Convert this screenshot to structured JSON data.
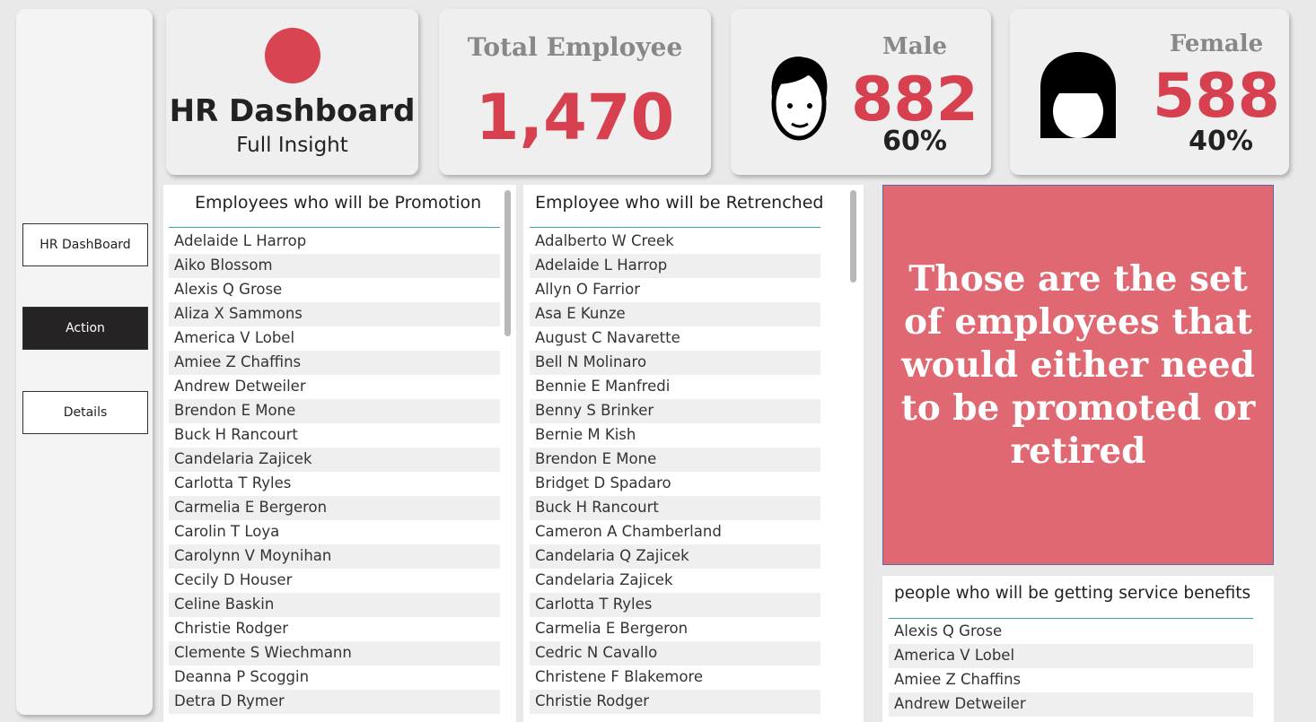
{
  "sidebar": {
    "buttons": [
      "HR DashBoard",
      "Action",
      "Details"
    ]
  },
  "header_cards": {
    "brand": {
      "title": "HR Dashboard",
      "subtitle": "Full Insight"
    },
    "total": {
      "label": "Total Employee",
      "value": "1,470"
    },
    "male": {
      "label": "Male",
      "count": "882",
      "percent": "60%"
    },
    "female": {
      "label": "Female",
      "count": "588",
      "percent": "40%"
    }
  },
  "promotion": {
    "title": "Employees who will be Promotion",
    "names": [
      "Adelaide L Harrop",
      "Aiko Blossom",
      "Alexis Q Grose",
      "Aliza X Sammons",
      "America V Lobel",
      "Amiee Z Chaffins",
      "Andrew Detweiler",
      "Brendon E Mone",
      "Buck H Rancourt",
      "Candelaria Zajicek",
      "Carlotta T Ryles",
      "Carmelia E Bergeron",
      "Carolin T Loya",
      "Carolynn V Moynihan",
      "Cecily D Houser",
      "Celine Baskin",
      "Christie Rodger",
      "Clemente S Wiechmann",
      "Deanna P Scoggin",
      "Detra D Rymer"
    ]
  },
  "retrenched": {
    "title": "Employee who will be Retrenched",
    "names": [
      "Adalberto W Creek",
      "Adelaide L Harrop",
      "Allyn O Farrior",
      "Asa E Kunze",
      "August C Navarette",
      "Bell N Molinaro",
      "Bennie E Manfredi",
      "Benny S Brinker",
      "Bernie M Kish",
      "Brendon E Mone",
      "Bridget D Spadaro",
      "Buck H Rancourt",
      "Cameron A Chamberland",
      "Candelaria Q Zajicek",
      "Candelaria Zajicek",
      "Carlotta T Ryles",
      "Carmelia E Bergeron",
      "Cedric N Cavallo",
      "Christene F Blakemore",
      "Christie Rodger"
    ]
  },
  "note": "Those are the set of employees that would either need to be promoted or retired",
  "service_benefits": {
    "title": "people who will be getting service benefits",
    "names": [
      "Alexis Q Grose",
      "America V Lobel",
      "Amiee Z Chaffins",
      "Andrew Detweiler"
    ]
  }
}
